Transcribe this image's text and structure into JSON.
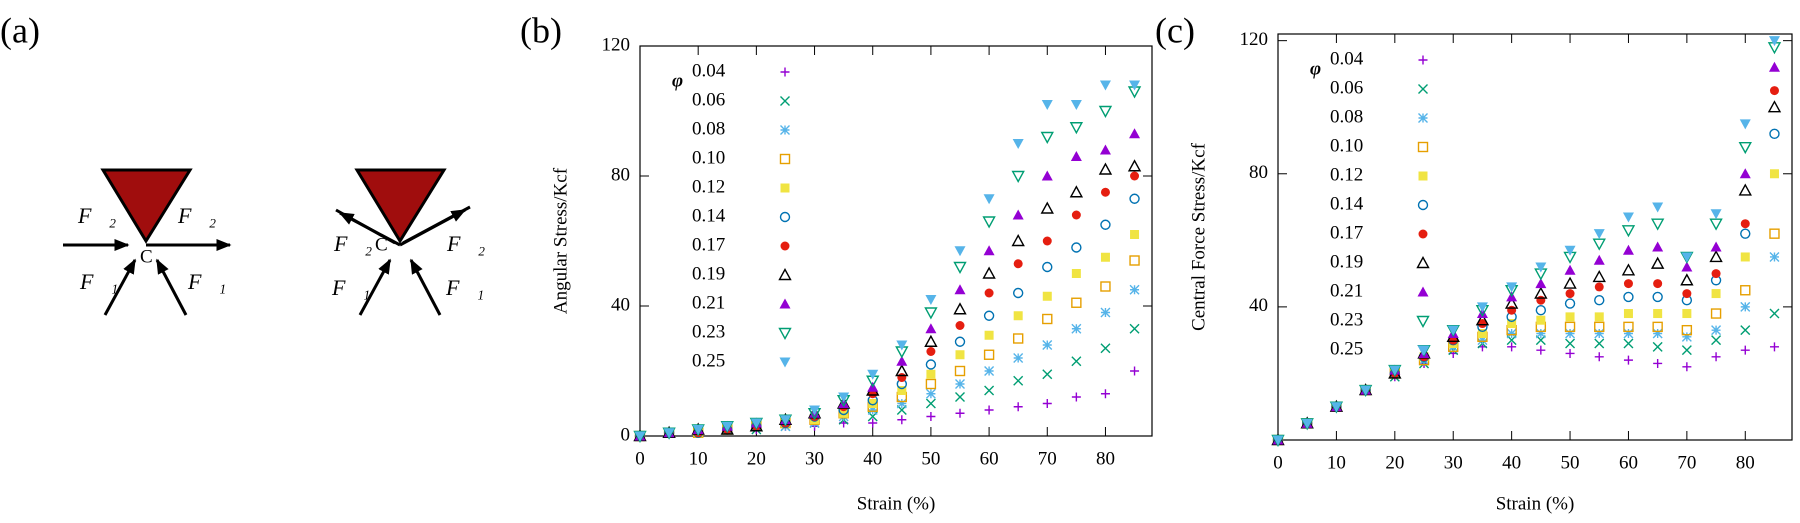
{
  "diagram": {
    "label": "(a)",
    "left": {
      "labels": [
        "F⃗₂",
        "F⃗₂",
        "C",
        "F⃗₁",
        "F⃗₁"
      ]
    },
    "right": {
      "labels": [
        "F⃗₂",
        "F⃗₂",
        "C",
        "F⃗₁",
        "F⃗₁"
      ]
    }
  },
  "chart_data": [
    {
      "type": "scatter",
      "title": "(b)",
      "xlabel": "Strain (%)",
      "ylabel": "Angular Stress/Kcf",
      "legend_title": "φ",
      "xlim": [
        0,
        88
      ],
      "ylim": [
        0,
        120
      ],
      "xticks": [
        0,
        10,
        20,
        30,
        40,
        50,
        60,
        70,
        80
      ],
      "yticks": [
        0,
        40,
        80,
        120
      ],
      "x": [
        0,
        5,
        10,
        15,
        20,
        25,
        30,
        35,
        40,
        45,
        50,
        55,
        60,
        65,
        70,
        75,
        80,
        85
      ],
      "series": [
        {
          "name": "0.04",
          "color": "#9400d3",
          "marker": "plus",
          "values": [
            0,
            1,
            1,
            2,
            2,
            3,
            3,
            4,
            4,
            5,
            6,
            7,
            8,
            9,
            10,
            12,
            13,
            20
          ]
        },
        {
          "name": "0.06",
          "color": "#009e73",
          "marker": "cross",
          "values": [
            0,
            1,
            1,
            2,
            2,
            3,
            4,
            5,
            6,
            8,
            10,
            12,
            14,
            17,
            19,
            23,
            27,
            33
          ]
        },
        {
          "name": "0.08",
          "color": "#56b4e9",
          "marker": "star",
          "values": [
            0,
            1,
            1,
            2,
            3,
            3,
            4,
            6,
            8,
            10,
            13,
            16,
            20,
            24,
            28,
            33,
            38,
            45
          ]
        },
        {
          "name": "0.10",
          "color": "#e69f00",
          "marker": "square-open",
          "values": [
            0,
            1,
            1,
            2,
            3,
            4,
            5,
            7,
            9,
            12,
            16,
            20,
            25,
            30,
            36,
            41,
            46,
            54
          ]
        },
        {
          "name": "0.12",
          "color": "#f0e442",
          "marker": "square",
          "values": [
            0,
            1,
            1,
            2,
            3,
            4,
            5,
            7,
            10,
            14,
            19,
            25,
            31,
            37,
            43,
            50,
            55,
            62
          ]
        },
        {
          "name": "0.14",
          "color": "#0072b2",
          "marker": "circle-open",
          "values": [
            0,
            1,
            1,
            2,
            3,
            4,
            6,
            8,
            11,
            16,
            22,
            29,
            37,
            44,
            52,
            58,
            65,
            73
          ]
        },
        {
          "name": "0.17",
          "color": "#e51e10",
          "marker": "circle",
          "values": [
            0,
            1,
            1,
            2,
            3,
            4,
            6,
            9,
            13,
            18,
            26,
            34,
            44,
            53,
            60,
            68,
            75,
            80
          ]
        },
        {
          "name": "0.19",
          "color": "#000000",
          "marker": "triangle-open",
          "values": [
            0,
            1,
            2,
            2,
            3,
            5,
            7,
            10,
            14,
            20,
            29,
            39,
            50,
            60,
            70,
            75,
            82,
            83
          ]
        },
        {
          "name": "0.21",
          "color": "#9400d3",
          "marker": "triangle",
          "values": [
            0,
            1,
            2,
            3,
            4,
            5,
            7,
            10,
            15,
            23,
            33,
            45,
            57,
            68,
            80,
            86,
            88,
            93
          ]
        },
        {
          "name": "0.23",
          "color": "#009e73",
          "marker": "down-open",
          "values": [
            0,
            1,
            2,
            3,
            4,
            5,
            7,
            11,
            17,
            26,
            38,
            52,
            66,
            80,
            92,
            95,
            100,
            106
          ]
        },
        {
          "name": "0.25",
          "color": "#56b4e9",
          "marker": "down",
          "values": [
            0,
            1,
            2,
            3,
            4,
            5,
            8,
            12,
            19,
            28,
            42,
            57,
            73,
            90,
            102,
            102,
            108,
            108
          ]
        }
      ]
    },
    {
      "type": "scatter",
      "title": "(c)",
      "xlabel": "Strain (%)",
      "ylabel": "Central Force Stress/Kcf",
      "legend_title": "φ",
      "xlim": [
        0,
        88
      ],
      "ylim": [
        0,
        122
      ],
      "xticks": [
        0,
        10,
        20,
        30,
        40,
        50,
        60,
        70,
        80
      ],
      "yticks": [
        40,
        80,
        120
      ],
      "x": [
        0,
        5,
        10,
        15,
        20,
        25,
        30,
        35,
        40,
        45,
        50,
        55,
        60,
        65,
        70,
        75,
        80,
        85
      ],
      "series": [
        {
          "name": "0.04",
          "color": "#9400d3",
          "marker": "plus",
          "values": [
            0,
            5,
            10,
            15,
            19,
            23,
            26,
            28,
            28,
            27,
            26,
            25,
            24,
            23,
            22,
            25,
            27,
            28
          ]
        },
        {
          "name": "0.06",
          "color": "#009e73",
          "marker": "cross",
          "values": [
            0,
            5,
            10,
            15,
            19,
            23,
            27,
            29,
            30,
            30,
            29,
            29,
            29,
            28,
            27,
            30,
            33,
            38
          ]
        },
        {
          "name": "0.08",
          "color": "#56b4e9",
          "marker": "star",
          "values": [
            0,
            5,
            10,
            15,
            20,
            24,
            28,
            30,
            32,
            32,
            32,
            32,
            32,
            32,
            31,
            33,
            40,
            55
          ]
        },
        {
          "name": "0.10",
          "color": "#e69f00",
          "marker": "square-open",
          "values": [
            0,
            5,
            10,
            15,
            20,
            24,
            28,
            31,
            33,
            34,
            34,
            34,
            34,
            34,
            33,
            38,
            45,
            62
          ]
        },
        {
          "name": "0.12",
          "color": "#f0e442",
          "marker": "square",
          "values": [
            0,
            5,
            10,
            15,
            20,
            25,
            29,
            32,
            35,
            36,
            37,
            37,
            38,
            38,
            38,
            44,
            55,
            80
          ]
        },
        {
          "name": "0.14",
          "color": "#0072b2",
          "marker": "circle-open",
          "values": [
            0,
            5,
            10,
            15,
            20,
            25,
            30,
            34,
            37,
            39,
            41,
            42,
            43,
            43,
            42,
            48,
            62,
            92
          ]
        },
        {
          "name": "0.17",
          "color": "#e51e10",
          "marker": "circle",
          "values": [
            0,
            5,
            10,
            15,
            20,
            25,
            30,
            35,
            39,
            42,
            44,
            46,
            47,
            47,
            44,
            50,
            65,
            105
          ]
        },
        {
          "name": "0.19",
          "color": "#000000",
          "marker": "triangle-open",
          "values": [
            0,
            5,
            10,
            15,
            20,
            26,
            31,
            36,
            41,
            44,
            47,
            49,
            51,
            53,
            48,
            55,
            75,
            100
          ]
        },
        {
          "name": "0.21",
          "color": "#9400d3",
          "marker": "triangle",
          "values": [
            0,
            5,
            10,
            15,
            21,
            26,
            32,
            38,
            43,
            47,
            51,
            54,
            57,
            58,
            52,
            58,
            80,
            112
          ]
        },
        {
          "name": "0.23",
          "color": "#009e73",
          "marker": "down-open",
          "values": [
            0,
            5,
            10,
            15,
            21,
            27,
            33,
            39,
            45,
            50,
            55,
            59,
            63,
            65,
            55,
            65,
            88,
            118
          ]
        },
        {
          "name": "0.25",
          "color": "#56b4e9",
          "marker": "down",
          "values": [
            0,
            5,
            10,
            15,
            21,
            27,
            33,
            40,
            46,
            52,
            57,
            62,
            67,
            70,
            55,
            68,
            95,
            120
          ]
        }
      ]
    }
  ]
}
